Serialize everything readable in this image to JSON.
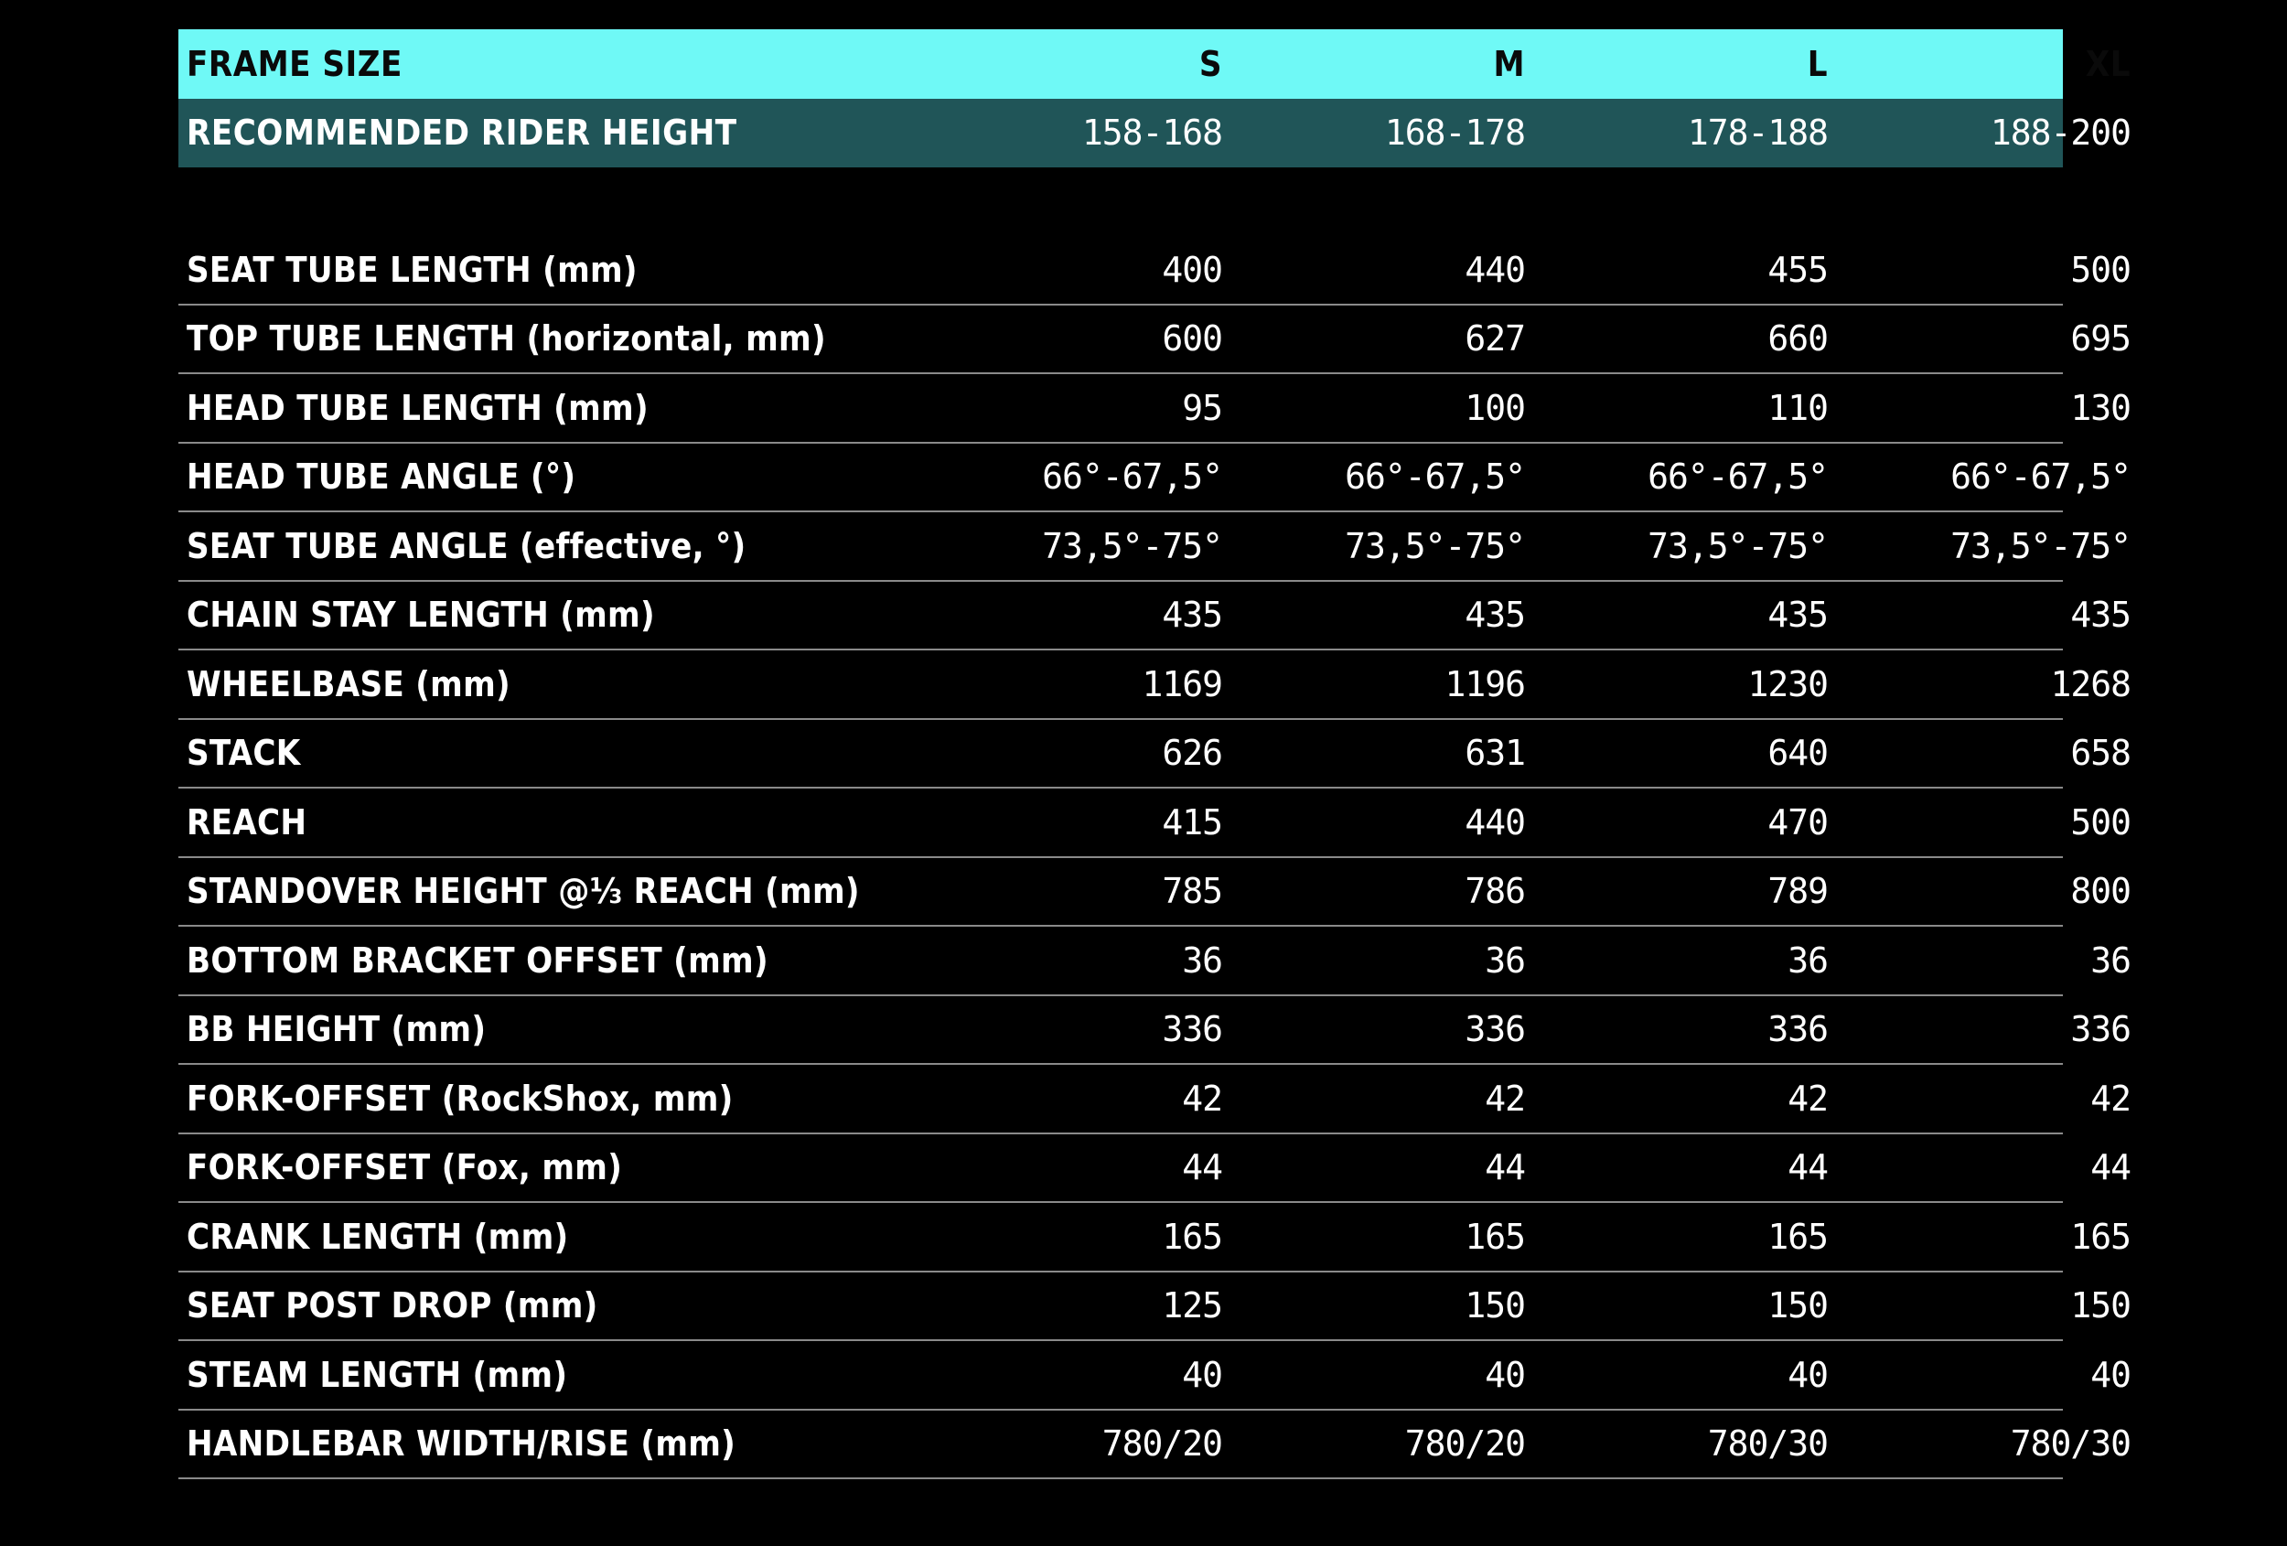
{
  "header": {
    "label": "FRAME SIZE",
    "sizes": [
      "S",
      "M",
      "L",
      "XL"
    ]
  },
  "rider": {
    "label": "RECOMMENDED RIDER HEIGHT",
    "values": [
      "158-168",
      "168-178",
      "178-188",
      "188-200"
    ]
  },
  "rows": [
    {
      "label": "SEAT TUBE LENGTH (mm)",
      "values": [
        "400",
        "440",
        "455",
        "500"
      ]
    },
    {
      "label": "TOP TUBE LENGTH (horizontal, mm)",
      "values": [
        "600",
        "627",
        "660",
        "695"
      ]
    },
    {
      "label": "HEAD TUBE LENGTH (mm)",
      "values": [
        "95",
        "100",
        "110",
        "130"
      ]
    },
    {
      "label": "HEAD TUBE ANGLE (°)",
      "values": [
        "66°-67,5°",
        "66°-67,5°",
        "66°-67,5°",
        "66°-67,5°"
      ]
    },
    {
      "label": "SEAT TUBE ANGLE (effective, °)",
      "values": [
        "73,5°-75°",
        "73,5°-75°",
        "73,5°-75°",
        "73,5°-75°"
      ]
    },
    {
      "label": "CHAIN STAY LENGTH (mm)",
      "values": [
        "435",
        "435",
        "435",
        "435"
      ]
    },
    {
      "label": "WHEELBASE (mm)",
      "values": [
        "1169",
        "1196",
        "1230",
        "1268"
      ]
    },
    {
      "label": "STACK",
      "values": [
        "626",
        "631",
        "640",
        "658"
      ]
    },
    {
      "label": "REACH",
      "values": [
        "415",
        "440",
        "470",
        "500"
      ]
    },
    {
      "label": "STANDOVER HEIGHT @⅓ REACH (mm)",
      "values": [
        "785",
        "786",
        "789",
        "800"
      ]
    },
    {
      "label": "BOTTOM BRACKET OFFSET (mm)",
      "values": [
        "36",
        "36",
        "36",
        "36"
      ]
    },
    {
      "label": "BB HEIGHT (mm)",
      "values": [
        "336",
        "336",
        "336",
        "336"
      ]
    },
    {
      "label": "FORK-OFFSET (RockShox, mm)",
      "values": [
        "42",
        "42",
        "42",
        "42"
      ]
    },
    {
      "label": "FORK-OFFSET (Fox, mm)",
      "values": [
        "44",
        "44",
        "44",
        "44"
      ]
    },
    {
      "label": "CRANK LENGTH (mm)",
      "values": [
        "165",
        "165",
        "165",
        "165"
      ]
    },
    {
      "label": "SEAT POST DROP (mm)",
      "values": [
        "125",
        "150",
        "150",
        "150"
      ]
    },
    {
      "label": "STEAM LENGTH (mm)",
      "values": [
        "40",
        "40",
        "40",
        "40"
      ]
    },
    {
      "label": "HANDLEBAR WIDTH/RISE (mm)",
      "values": [
        "780/20",
        "780/20",
        "780/30",
        "780/30"
      ]
    }
  ]
}
